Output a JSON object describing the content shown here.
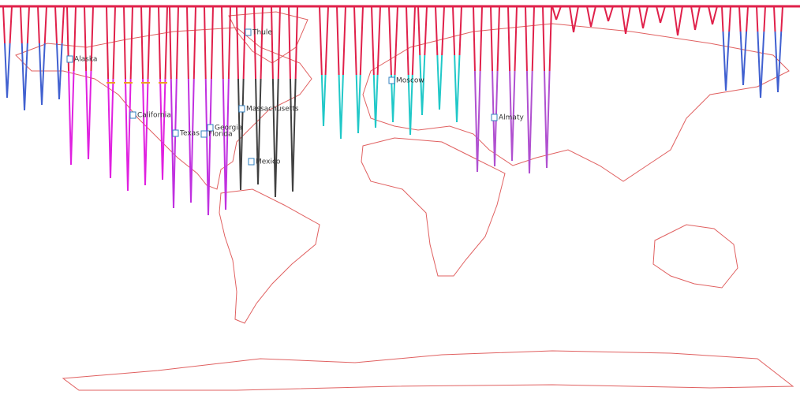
{
  "map": {
    "labels": [
      "Thule",
      "Alaska",
      "California",
      "Massachusetts",
      "Georgia",
      "Texas",
      "Florida",
      "Mexico",
      "Moscow",
      "Almaty"
    ]
  }
}
